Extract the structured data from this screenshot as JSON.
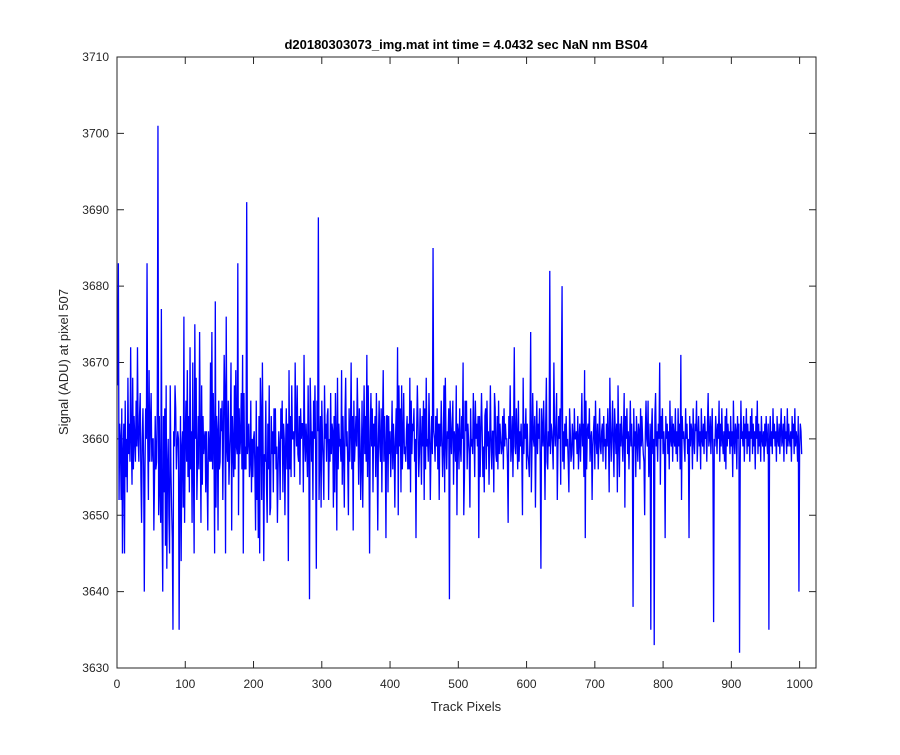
{
  "chart_data": {
    "type": "line",
    "title": "d20180303073_img.mat int time = 4.0432 sec  NaN nm BS04",
    "xlabel": "Track Pixels",
    "ylabel": "Signal (ADU) at pixel 507",
    "xlim": [
      0,
      1024
    ],
    "ylim": [
      3630,
      3710
    ],
    "xticks": [
      0,
      100,
      200,
      300,
      400,
      500,
      600,
      700,
      800,
      900,
      1000
    ],
    "yticks": [
      3630,
      3640,
      3650,
      3660,
      3670,
      3680,
      3690,
      3700,
      3710
    ],
    "grid": false,
    "line_color": "#0000ff",
    "series": [
      {
        "x_start": 1,
        "x_step": 1,
        "values": [
          3667,
          3683,
          3652,
          3662,
          3660,
          3652,
          3664,
          3645,
          3658,
          3662,
          3645,
          3665,
          3655,
          3660,
          3653,
          3668,
          3658,
          3662,
          3657,
          3672,
          3660,
          3654,
          3668,
          3656,
          3663,
          3660,
          3657,
          3665,
          3659,
          3672,
          3660,
          3657,
          3663,
          3666,
          3655,
          3649,
          3660,
          3664,
          3657,
          3640,
          3656,
          3664,
          3660,
          3683,
          3660,
          3652,
          3669,
          3657,
          3662,
          3666,
          3657,
          3660,
          3660,
          3648,
          3655,
          3663,
          3656,
          3657,
          3664,
          3701,
          3650,
          3663,
          3653,
          3649,
          3677,
          3650,
          3640,
          3663,
          3653,
          3664,
          3646,
          3667,
          3643,
          3656,
          3660,
          3650,
          3645,
          3667,
          3656,
          3651,
          3647,
          3635,
          3661,
          3659,
          3667,
          3664,
          3656,
          3659,
          3661,
          3660,
          3635,
          3653,
          3663,
          3644,
          3659,
          3661,
          3651,
          3676,
          3649,
          3660,
          3665,
          3657,
          3669,
          3655,
          3663,
          3653,
          3672,
          3656,
          3661,
          3649,
          3670,
          3656,
          3645,
          3675,
          3660,
          3668,
          3652,
          3657,
          3663,
          3656,
          3674,
          3660,
          3649,
          3667,
          3654,
          3663,
          3658,
          3660,
          3661,
          3653,
          3661,
          3655,
          3648,
          3661,
          3658,
          3657,
          3670,
          3657,
          3674,
          3656,
          3666,
          3660,
          3645,
          3678,
          3651,
          3663,
          3661,
          3648,
          3665,
          3656,
          3657,
          3664,
          3661,
          3665,
          3652,
          3661,
          3671,
          3666,
          3645,
          3676,
          3659,
          3657,
          3665,
          3654,
          3658,
          3661,
          3670,
          3648,
          3663,
          3659,
          3655,
          3667,
          3656,
          3669,
          3659,
          3658,
          3683,
          3650,
          3664,
          3658,
          3660,
          3666,
          3656,
          3671,
          3645,
          3666,
          3656,
          3659,
          3656,
          3691,
          3658,
          3660,
          3662,
          3655,
          3657,
          3665,
          3653,
          3660,
          3655,
          3660,
          3661,
          3656,
          3648,
          3665,
          3652,
          3659,
          3647,
          3663,
          3645,
          3668,
          3663,
          3652,
          3670,
          3659,
          3644,
          3658,
          3657,
          3665,
          3654,
          3649,
          3662,
          3656,
          3667,
          3650,
          3651,
          3663,
          3658,
          3661,
          3653,
          3664,
          3658,
          3664,
          3656,
          3659,
          3649,
          3656,
          3661,
          3659,
          3652,
          3664,
          3660,
          3665,
          3653,
          3662,
          3660,
          3650,
          3659,
          3664,
          3656,
          3662,
          3644,
          3669,
          3656,
          3663,
          3655,
          3667,
          3660,
          3660,
          3661,
          3655,
          3670,
          3662,
          3659,
          3667,
          3658,
          3657,
          3663,
          3654,
          3664,
          3660,
          3662,
          3662,
          3653,
          3671,
          3660,
          3657,
          3662,
          3659,
          3655,
          3667,
          3658,
          3639,
          3668,
          3663,
          3657,
          3661,
          3652,
          3665,
          3660,
          3667,
          3658,
          3643,
          3665,
          3661,
          3689,
          3652,
          3658,
          3663,
          3651,
          3665,
          3660,
          3657,
          3652,
          3667,
          3660,
          3662,
          3657,
          3663,
          3664,
          3652,
          3660,
          3657,
          3666,
          3658,
          3662,
          3661,
          3651,
          3663,
          3653,
          3666,
          3660,
          3648,
          3668,
          3656,
          3662,
          3659,
          3660,
          3657,
          3669,
          3654,
          3663,
          3658,
          3651,
          3663,
          3668,
          3659,
          3661,
          3657,
          3650,
          3664,
          3657,
          3661,
          3670,
          3656,
          3663,
          3648,
          3665,
          3657,
          3660,
          3663,
          3659,
          3668,
          3662,
          3654,
          3664,
          3660,
          3652,
          3657,
          3665,
          3651,
          3660,
          3667,
          3658,
          3663,
          3657,
          3671,
          3655,
          3667,
          3659,
          3645,
          3661,
          3666,
          3659,
          3664,
          3653,
          3662,
          3659,
          3663,
          3655,
          3666,
          3659,
          3648,
          3660,
          3665,
          3659,
          3657,
          3664,
          3653,
          3662,
          3669,
          3657,
          3663,
          3659,
          3647,
          3663,
          3663,
          3653,
          3663,
          3658,
          3661,
          3655,
          3659,
          3665,
          3656,
          3662,
          3659,
          3651,
          3660,
          3664,
          3658,
          3672,
          3650,
          3667,
          3659,
          3664,
          3653,
          3667,
          3656,
          3660,
          3666,
          3658,
          3659,
          3657,
          3661,
          3663,
          3656,
          3662,
          3656,
          3668,
          3653,
          3665,
          3658,
          3662,
          3661,
          3664,
          3657,
          3660,
          3647,
          3661,
          3667,
          3662,
          3655,
          3658,
          3664,
          3660,
          3654,
          3663,
          3659,
          3665,
          3652,
          3664,
          3656,
          3668,
          3659,
          3660,
          3657,
          3666,
          3661,
          3652,
          3659,
          3663,
          3658,
          3685,
          3661,
          3660,
          3657,
          3663,
          3659,
          3664,
          3656,
          3662,
          3652,
          3662,
          3659,
          3665,
          3660,
          3655,
          3659,
          3667,
          3653,
          3668,
          3660,
          3656,
          3661,
          3660,
          3664,
          3639,
          3665,
          3661,
          3658,
          3662,
          3665,
          3654,
          3661,
          3660,
          3657,
          3667,
          3650,
          3662,
          3661,
          3656,
          3664,
          3659,
          3657,
          3663,
          3660,
          3670,
          3650,
          3655,
          3665,
          3661,
          3665,
          3656,
          3662,
          3660,
          3658,
          3651,
          3664,
          3659,
          3660,
          3658,
          3666,
          3661,
          3655,
          3665,
          3660,
          3662,
          3659,
          3663,
          3647,
          3663,
          3655,
          3661,
          3666,
          3661,
          3655,
          3659,
          3653,
          3663,
          3664,
          3656,
          3665,
          3659,
          3661,
          3654,
          3660,
          3667,
          3659,
          3656,
          3661,
          3661,
          3653,
          3666,
          3664,
          3658,
          3657,
          3663,
          3656,
          3665,
          3658,
          3662,
          3660,
          3658,
          3659,
          3663,
          3656,
          3664,
          3659,
          3662,
          3660,
          3660,
          3657,
          3649,
          3663,
          3660,
          3667,
          3657,
          3659,
          3663,
          3655,
          3661,
          3672,
          3659,
          3658,
          3664,
          3660,
          3656,
          3665,
          3657,
          3661,
          3659,
          3662,
          3658,
          3650,
          3668,
          3658,
          3662,
          3660,
          3664,
          3656,
          3662,
          3658,
          3657,
          3655,
          3661,
          3674,
          3653,
          3659,
          3666,
          3660,
          3659,
          3663,
          3651,
          3660,
          3665,
          3658,
          3662,
          3660,
          3664,
          3657,
          3643,
          3664,
          3661,
          3659,
          3665,
          3660,
          3652,
          3662,
          3668,
          3657,
          3656,
          3661,
          3659,
          3682,
          3658,
          3662,
          3661,
          3659,
          3656,
          3670,
          3661,
          3659,
          3662,
          3666,
          3652,
          3659,
          3663,
          3660,
          3664,
          3654,
          3668,
          3680,
          3657,
          3661,
          3656,
          3662,
          3659,
          3663,
          3659,
          3660,
          3657,
          3653,
          3664,
          3661,
          3657,
          3658,
          3662,
          3660,
          3656,
          3664,
          3660,
          3660,
          3661,
          3658,
          3663,
          3656,
          3660,
          3662,
          3657,
          3661,
          3666,
          3659,
          3662,
          3655,
          3669,
          3647,
          3665,
          3656,
          3661,
          3662,
          3660,
          3664,
          3657,
          3660,
          3661,
          3652,
          3659,
          3661,
          3663,
          3656,
          3665,
          3660,
          3658,
          3662,
          3656,
          3660,
          3664,
          3659,
          3658,
          3661,
          3662,
          3657,
          3663,
          3659,
          3660,
          3656,
          3662,
          3659,
          3664,
          3660,
          3653,
          3668,
          3661,
          3657,
          3661,
          3665,
          3659,
          3655,
          3664,
          3661,
          3658,
          3662,
          3653,
          3667,
          3660,
          3655,
          3662,
          3659,
          3663,
          3660,
          3657,
          3661,
          3666,
          3651,
          3663,
          3660,
          3664,
          3658,
          3661,
          3656,
          3660,
          3665,
          3659,
          3662,
          3658,
          3638,
          3664,
          3659,
          3661,
          3655,
          3663,
          3660,
          3657,
          3662,
          3661,
          3656,
          3664,
          3659,
          3663,
          3660,
          3658,
          3657,
          3650,
          3661,
          3665,
          3660,
          3659,
          3665,
          3655,
          3657,
          3662,
          3635,
          3661,
          3664,
          3658,
          3660,
          3633,
          3663,
          3666,
          3659,
          3661,
          3657,
          3662,
          3660,
          3670,
          3654,
          3663,
          3660,
          3664,
          3658,
          3661,
          3659,
          3647,
          3663,
          3660,
          3662,
          3658,
          3661,
          3656,
          3665,
          3660,
          3659,
          3663,
          3657,
          3662,
          3660,
          3659,
          3664,
          3658,
          3661,
          3657,
          3664,
          3659,
          3662,
          3656,
          3671,
          3652,
          3663,
          3660,
          3661,
          3659,
          3657,
          3664,
          3660,
          3662,
          3658,
          3660,
          3647,
          3663,
          3659,
          3662,
          3661,
          3656,
          3664,
          3660,
          3658,
          3662,
          3661,
          3665,
          3657,
          3660,
          3663,
          3659,
          3661,
          3656,
          3664,
          3660,
          3659,
          3662,
          3658,
          3663,
          3660,
          3661,
          3657,
          3662,
          3666,
          3659,
          3660,
          3663,
          3658,
          3661,
          3664,
          3657,
          3636,
          3660,
          3659,
          3663,
          3661,
          3658,
          3662,
          3660,
          3665,
          3657,
          3662,
          3659,
          3664,
          3660,
          3658,
          3661,
          3657,
          3663,
          3656,
          3664,
          3659,
          3662,
          3660,
          3661,
          3658,
          3663,
          3659,
          3661,
          3655,
          3665,
          3660,
          3658,
          3662,
          3661,
          3656,
          3663,
          3660,
          3662,
          3632,
          3657,
          3665,
          3660,
          3661,
          3659,
          3663,
          3657,
          3662,
          3660,
          3664,
          3658,
          3662,
          3659,
          3661,
          3657,
          3663,
          3660,
          3664,
          3658,
          3662,
          3659,
          3661,
          3656,
          3663,
          3660,
          3665,
          3658,
          3662,
          3659,
          3661,
          3657,
          3663,
          3660,
          3659,
          3661,
          3657,
          3662,
          3659,
          3663,
          3660,
          3658,
          3662,
          3635,
          3660,
          3663,
          3659,
          3661,
          3658,
          3664,
          3660,
          3662,
          3659,
          3661,
          3657,
          3663,
          3660,
          3659,
          3662,
          3658,
          3661,
          3664,
          3659,
          3660,
          3662,
          3657,
          3663,
          3660,
          3661,
          3658,
          3664,
          3659,
          3662,
          3660,
          3659,
          3661,
          3657,
          3663,
          3660,
          3662,
          3658,
          3664,
          3659,
          3661,
          3660,
          3657,
          3663,
          3640,
          3659,
          3662,
          3661,
          3658
        ]
      }
    ]
  }
}
